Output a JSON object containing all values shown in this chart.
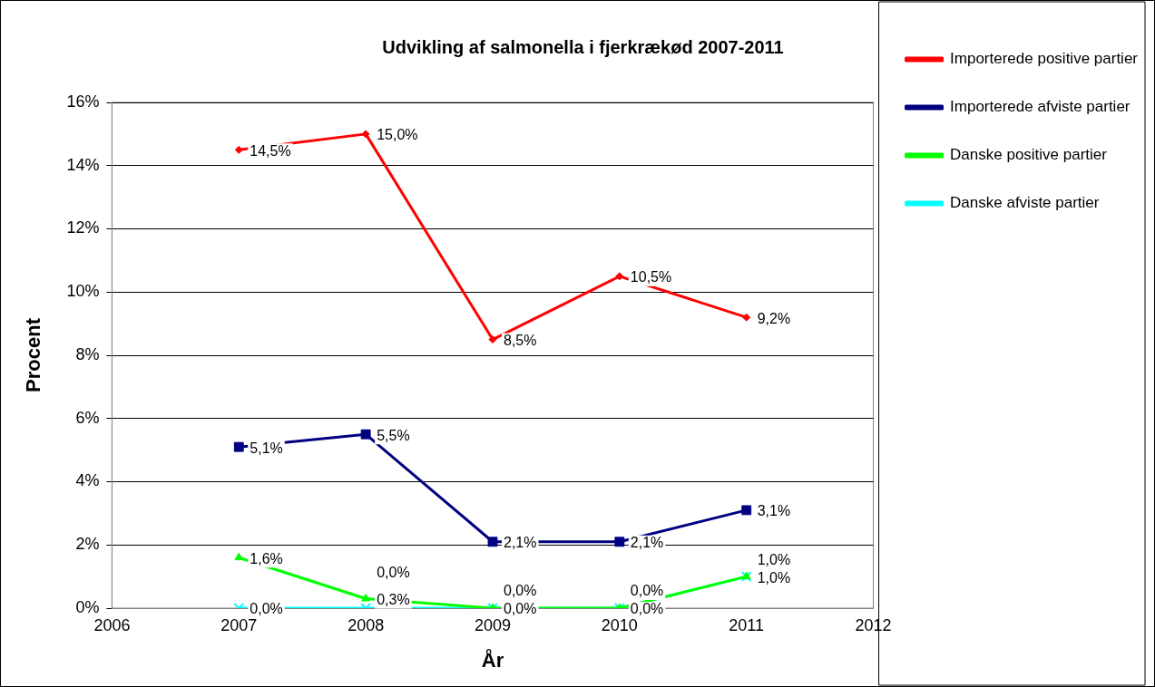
{
  "chart_data": {
    "type": "line",
    "title": "Udvikling af salmonella i fjerkrækød 2007-2011",
    "xlabel": "År",
    "ylabel": "Procent",
    "x": [
      2007,
      2008,
      2009,
      2010,
      2011
    ],
    "xlim": [
      2006,
      2012
    ],
    "xticks": [
      2006,
      2007,
      2008,
      2009,
      2010,
      2011,
      2012
    ],
    "ylim": [
      0,
      16
    ],
    "yticks": [
      {
        "value": 0,
        "label": "0%"
      },
      {
        "value": 2,
        "label": "2%"
      },
      {
        "value": 4,
        "label": "4%"
      },
      {
        "value": 6,
        "label": "6%"
      },
      {
        "value": 8,
        "label": "8%"
      },
      {
        "value": 10,
        "label": "10%"
      },
      {
        "value": 12,
        "label": "12%"
      },
      {
        "value": 14,
        "label": "14%"
      },
      {
        "value": 16,
        "label": "16%"
      }
    ],
    "grid": "y",
    "legend": "top right",
    "line_style": "solid",
    "series": [
      {
        "name": "Importerede positive partier",
        "color": "#ff0000",
        "marker": "diamond",
        "values": [
          14.5,
          15.0,
          8.5,
          10.5,
          9.2
        ],
        "value_labels": [
          "14,5%",
          "15,0%",
          "8,5%",
          "10,5%",
          "9,2%"
        ]
      },
      {
        "name": "Importerede afviste partier",
        "color": "#000080",
        "marker": "square",
        "values": [
          5.1,
          5.5,
          2.1,
          2.1,
          3.1
        ],
        "value_labels": [
          "5,1%",
          "5,5%",
          "2,1%",
          "2,1%",
          "3,1%"
        ]
      },
      {
        "name": "Danske positive partier",
        "color": "#00ff00",
        "marker": "triangle",
        "values": [
          1.6,
          0.3,
          0.0,
          0.0,
          1.0
        ],
        "value_labels": [
          "1,6%",
          "0,3%",
          "0,0%",
          "0,0%",
          "1,0%"
        ]
      },
      {
        "name": "Danske afviste partier",
        "color": "#00ffff",
        "marker": "cross",
        "values": [
          0.0,
          0.0,
          0.0,
          0.0,
          1.0
        ],
        "value_labels": [
          "0,0%",
          "0,0%",
          "0,0%",
          "0,0%",
          "1,0%"
        ]
      }
    ]
  }
}
